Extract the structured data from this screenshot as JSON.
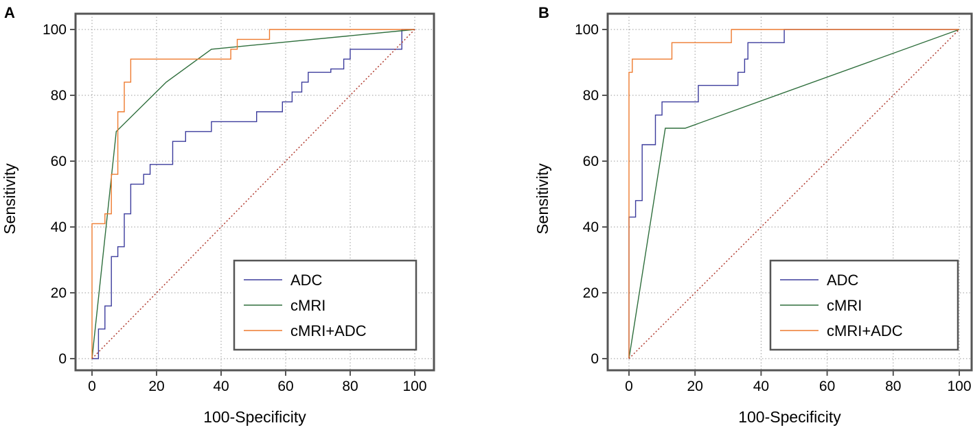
{
  "chart_data": [
    {
      "panel": "A",
      "type": "line",
      "title": "",
      "xlabel": "100-Specificity",
      "ylabel": "Sensitivity",
      "xlim": [
        0,
        100
      ],
      "ylim": [
        0,
        100
      ],
      "xticks": [
        0,
        20,
        40,
        60,
        80,
        100
      ],
      "yticks": [
        0,
        20,
        40,
        60,
        80,
        100
      ],
      "grid": true,
      "legend_position": "bottom-right",
      "series": [
        {
          "name": "ADC",
          "color": "#3b3b9c",
          "style": "solid",
          "points": [
            [
              0,
              0
            ],
            [
              2,
              0
            ],
            [
              2,
              9
            ],
            [
              4,
              9
            ],
            [
              4,
              16
            ],
            [
              6,
              16
            ],
            [
              6,
              31
            ],
            [
              8,
              31
            ],
            [
              8,
              34
            ],
            [
              10,
              34
            ],
            [
              10,
              44
            ],
            [
              12,
              44
            ],
            [
              12,
              53
            ],
            [
              16,
              53
            ],
            [
              16,
              56
            ],
            [
              18,
              56
            ],
            [
              18,
              59
            ],
            [
              25,
              59
            ],
            [
              25,
              66
            ],
            [
              29,
              66
            ],
            [
              29,
              69
            ],
            [
              37,
              69
            ],
            [
              37,
              72
            ],
            [
              51,
              72
            ],
            [
              51,
              75
            ],
            [
              59,
              75
            ],
            [
              59,
              78
            ],
            [
              62,
              78
            ],
            [
              62,
              81
            ],
            [
              65,
              81
            ],
            [
              65,
              84
            ],
            [
              67,
              84
            ],
            [
              67,
              87
            ],
            [
              74,
              87
            ],
            [
              74,
              88
            ],
            [
              78,
              88
            ],
            [
              78,
              91
            ],
            [
              80,
              91
            ],
            [
              80,
              94
            ],
            [
              96,
              94
            ],
            [
              96,
              100
            ],
            [
              100,
              100
            ]
          ]
        },
        {
          "name": "cMRI",
          "color": "#2e6e3c",
          "style": "solid",
          "points": [
            [
              0,
              0
            ],
            [
              7.5,
              69
            ],
            [
              23,
              84
            ],
            [
              37,
              94
            ],
            [
              100,
              100
            ]
          ]
        },
        {
          "name": "cMRI+ADC",
          "color": "#ee7a2e",
          "style": "solid",
          "points": [
            [
              0,
              0
            ],
            [
              0,
              41
            ],
            [
              4,
              41
            ],
            [
              4,
              44
            ],
            [
              6,
              44
            ],
            [
              6,
              56
            ],
            [
              8,
              56
            ],
            [
              8,
              75
            ],
            [
              10,
              75
            ],
            [
              10,
              84
            ],
            [
              12,
              84
            ],
            [
              12,
              91
            ],
            [
              43,
              91
            ],
            [
              43,
              94
            ],
            [
              45,
              94
            ],
            [
              45,
              97
            ],
            [
              55,
              97
            ],
            [
              55,
              100
            ],
            [
              100,
              100
            ]
          ]
        },
        {
          "name": "",
          "color": "#b03a2e",
          "style": "dotted",
          "points": [
            [
              0,
              0
            ],
            [
              100,
              100
            ]
          ]
        }
      ]
    },
    {
      "panel": "B",
      "type": "line",
      "title": "",
      "xlabel": "100-Specificity",
      "ylabel": "Sensitivity",
      "xlim": [
        0,
        100
      ],
      "ylim": [
        0,
        100
      ],
      "xticks": [
        0,
        20,
        40,
        60,
        80,
        100
      ],
      "yticks": [
        0,
        20,
        40,
        60,
        80,
        100
      ],
      "grid": true,
      "legend_position": "bottom-right",
      "series": [
        {
          "name": "ADC",
          "color": "#3b3b9c",
          "style": "solid",
          "points": [
            [
              0,
              0
            ],
            [
              0,
              43
            ],
            [
              2,
              43
            ],
            [
              2,
              48
            ],
            [
              4,
              48
            ],
            [
              4,
              65
            ],
            [
              8,
              65
            ],
            [
              8,
              74
            ],
            [
              10,
              74
            ],
            [
              10,
              78
            ],
            [
              21,
              78
            ],
            [
              21,
              83
            ],
            [
              33,
              83
            ],
            [
              33,
              87
            ],
            [
              35,
              87
            ],
            [
              35,
              91
            ],
            [
              36,
              91
            ],
            [
              36,
              96
            ],
            [
              47,
              96
            ],
            [
              47,
              100
            ],
            [
              100,
              100
            ]
          ]
        },
        {
          "name": "cMRI",
          "color": "#2e6e3c",
          "style": "solid",
          "points": [
            [
              0,
              0
            ],
            [
              11,
              70
            ],
            [
              17,
              70
            ],
            [
              100,
              100
            ]
          ]
        },
        {
          "name": "cMRI+ADC",
          "color": "#ee7a2e",
          "style": "solid",
          "points": [
            [
              0,
              0
            ],
            [
              0,
              87
            ],
            [
              1,
              87
            ],
            [
              1,
              91
            ],
            [
              13,
              91
            ],
            [
              13,
              96
            ],
            [
              31,
              96
            ],
            [
              31,
              100
            ],
            [
              100,
              100
            ]
          ]
        },
        {
          "name": "",
          "color": "#b03a2e",
          "style": "dotted",
          "points": [
            [
              0,
              0
            ],
            [
              100,
              100
            ]
          ]
        }
      ]
    }
  ]
}
